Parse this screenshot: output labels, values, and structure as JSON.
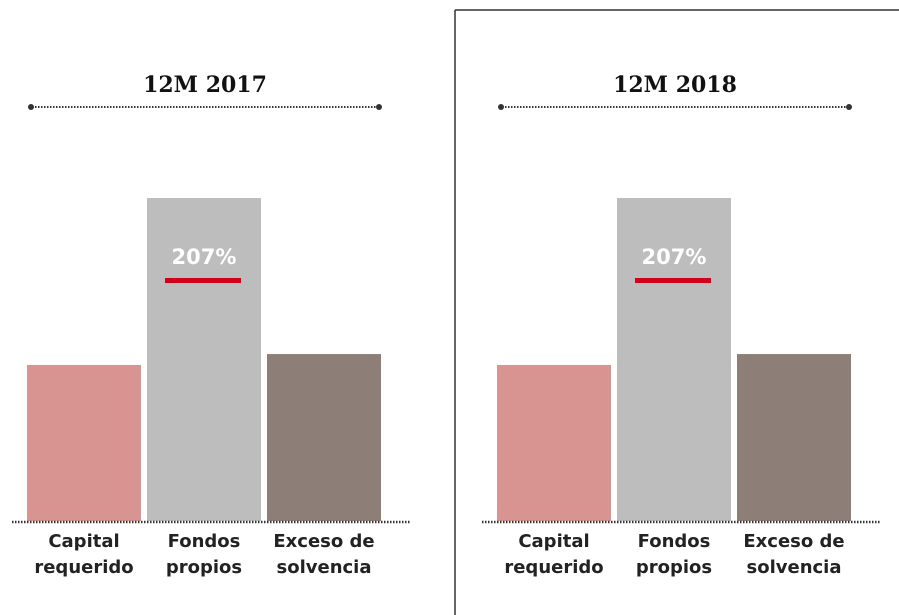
{
  "chart_data": [
    {
      "type": "bar",
      "title": "12M 2017",
      "categories": [
        "Capital requerido",
        "Fondos propios",
        "Exceso de solvencia"
      ],
      "values": [
        100,
        207,
        107
      ],
      "value_labels": [
        null,
        "207%",
        null
      ],
      "colors": [
        "#d89490",
        "#bdbdbd",
        "#8d7f78"
      ]
    },
    {
      "type": "bar",
      "title": "12M 2018",
      "categories": [
        "Capital requerido",
        "Fondos propios",
        "Exceso de solvencia"
      ],
      "values": [
        100,
        207,
        107
      ],
      "value_labels": [
        null,
        "207%",
        null
      ],
      "colors": [
        "#d89490",
        "#bdbdbd",
        "#8d7f78"
      ]
    }
  ]
}
